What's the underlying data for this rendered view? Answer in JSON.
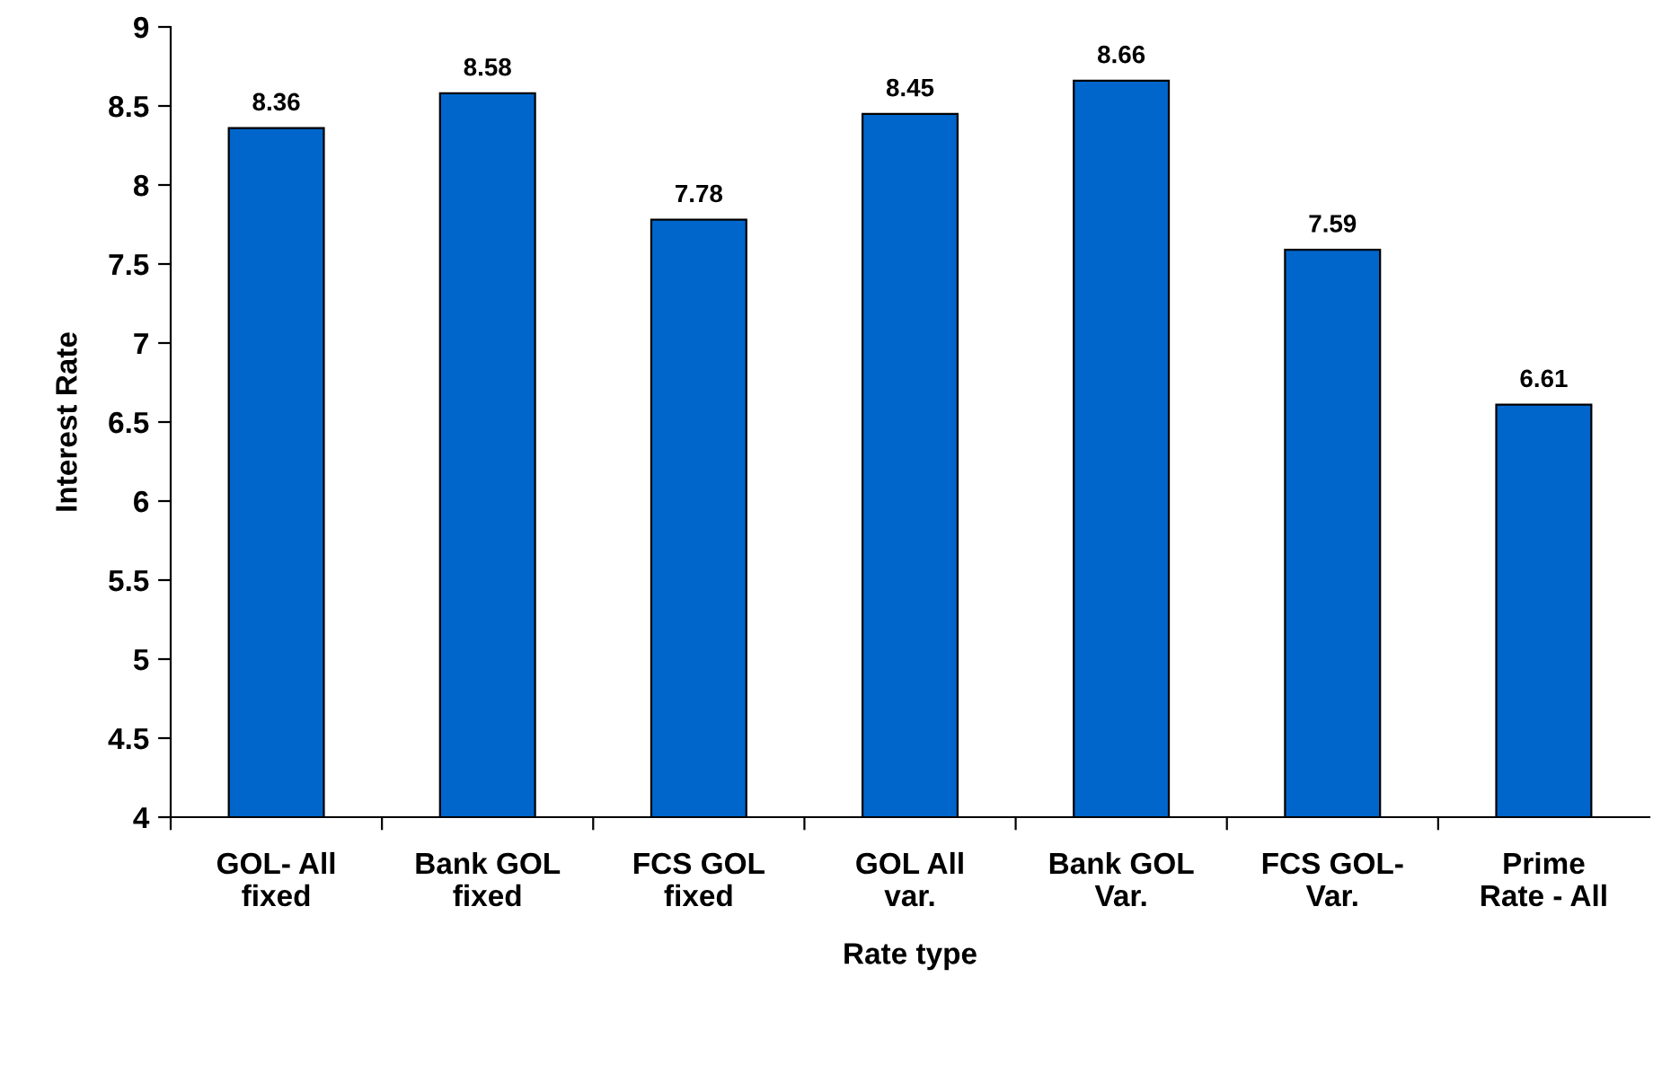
{
  "chart_data": {
    "type": "bar",
    "xlabel": "Rate type",
    "ylabel": "Interest Rate",
    "categories": [
      "GOL- All\nfixed",
      "Bank GOL\nfixed",
      "FCS GOL\nfixed",
      "GOL All\nvar.",
      "Bank GOL\nVar.",
      "FCS GOL-\nVar.",
      "Prime\nRate - All"
    ],
    "values": [
      8.36,
      8.58,
      7.78,
      8.45,
      8.66,
      7.59,
      6.61
    ],
    "color": "#0066cc",
    "ylim": [
      4,
      9
    ],
    "yticks": [
      4,
      4.5,
      5,
      5.5,
      6,
      6.5,
      7,
      7.5,
      8,
      8.5,
      9
    ],
    "data_labels": true,
    "grid": false,
    "legend": false
  }
}
